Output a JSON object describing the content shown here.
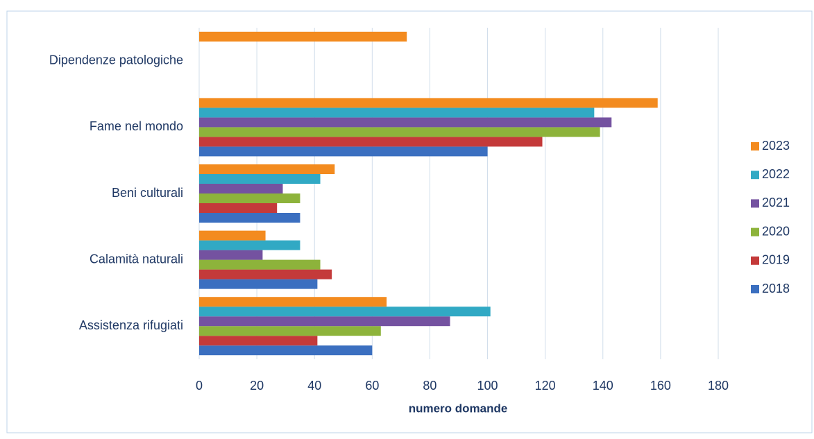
{
  "chart_data": {
    "type": "bar",
    "orientation": "horizontal",
    "x_label": "numero domande",
    "categories": [
      "Assistenza rifugiati",
      "Calamità naturali",
      "Beni culturali",
      "Fame nel mondo",
      "Dipendenze patologiche"
    ],
    "series": [
      {
        "name": "2018",
        "color": "#3b6fc0",
        "values": [
          60,
          41,
          35,
          100,
          null
        ]
      },
      {
        "name": "2019",
        "color": "#c43a3a",
        "values": [
          41,
          46,
          27,
          119,
          null
        ]
      },
      {
        "name": "2020",
        "color": "#8db33b",
        "values": [
          63,
          42,
          35,
          139,
          null
        ]
      },
      {
        "name": "2021",
        "color": "#7452a0",
        "values": [
          87,
          22,
          29,
          143,
          null
        ]
      },
      {
        "name": "2022",
        "color": "#31a9c4",
        "values": [
          101,
          35,
          42,
          137,
          null
        ]
      },
      {
        "name": "2023",
        "color": "#f38b1f",
        "values": [
          65,
          23,
          47,
          159,
          72
        ]
      }
    ],
    "xlim": [
      0,
      180
    ],
    "xticks": [
      0,
      20,
      40,
      60,
      80,
      100,
      120,
      140,
      160,
      180
    ],
    "grid": true,
    "legend": "right"
  }
}
